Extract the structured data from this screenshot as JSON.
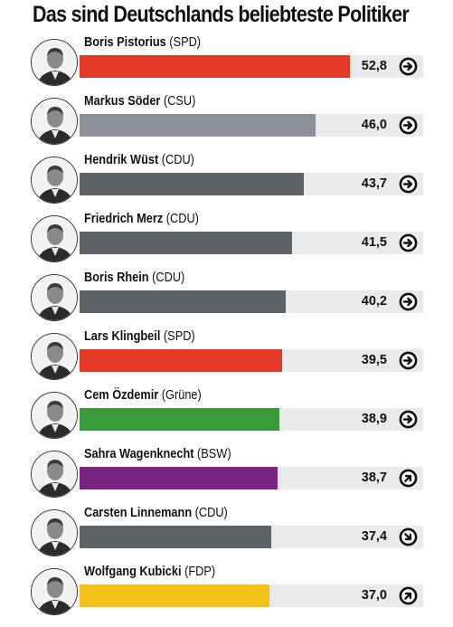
{
  "title": "Das sind Deutschlands beliebteste Politiker",
  "colors": {
    "SPD": "#e23a27",
    "CSU": "#8b9196",
    "CDU": "#5d6266",
    "Grüne": "#3a9a3b",
    "BSW": "#7b2380",
    "FDP": "#f3c11a",
    "track": "#e8eaec"
  },
  "chart_data": {
    "type": "bar",
    "orientation": "horizontal",
    "title": "Das sind Deutschlands beliebteste Politiker",
    "xlim": [
      0,
      67
    ],
    "rows": [
      {
        "name": "Boris Pistorius",
        "party": "(SPD)",
        "color": "SPD",
        "value": 52.8,
        "value_label": "52,8",
        "trend": "right",
        "trend_icon": "arrow-right-icon"
      },
      {
        "name": "Markus Söder",
        "party": "(CSU)",
        "color": "CSU",
        "value": 46.0,
        "value_label": "46,0",
        "trend": "right",
        "trend_icon": "arrow-right-icon"
      },
      {
        "name": "Hendrik Wüst",
        "party": "(CDU)",
        "color": "CDU",
        "value": 43.7,
        "value_label": "43,7",
        "trend": "right",
        "trend_icon": "arrow-right-icon"
      },
      {
        "name": "Friedrich Merz",
        "party": "(CDU)",
        "color": "CDU",
        "value": 41.5,
        "value_label": "41,5",
        "trend": "right",
        "trend_icon": "arrow-right-icon"
      },
      {
        "name": "Boris Rhein",
        "party": "(CDU)",
        "color": "CDU",
        "value": 40.2,
        "value_label": "40,2",
        "trend": "right",
        "trend_icon": "arrow-right-icon"
      },
      {
        "name": "Lars Klingbeil",
        "party": "(SPD)",
        "color": "SPD",
        "value": 39.5,
        "value_label": "39,5",
        "trend": "right",
        "trend_icon": "arrow-right-icon"
      },
      {
        "name": "Cem Özdemir",
        "party": "(Grüne)",
        "color": "Grüne",
        "value": 38.9,
        "value_label": "38,9",
        "trend": "right",
        "trend_icon": "arrow-right-icon"
      },
      {
        "name": "Sahra Wagenknecht",
        "party": "(BSW)",
        "color": "BSW",
        "value": 38.7,
        "value_label": "38,7",
        "trend": "up-right",
        "trend_icon": "arrow-up-right-icon"
      },
      {
        "name": "Carsten Linnemann",
        "party": "(CDU)",
        "color": "CDU",
        "value": 37.4,
        "value_label": "37,4",
        "trend": "down-right",
        "trend_icon": "arrow-down-right-icon"
      },
      {
        "name": "Wolfgang Kubicki",
        "party": "(FDP)",
        "color": "FDP",
        "value": 37.0,
        "value_label": "37,0",
        "trend": "up-right",
        "trend_icon": "arrow-up-right-icon"
      }
    ]
  }
}
